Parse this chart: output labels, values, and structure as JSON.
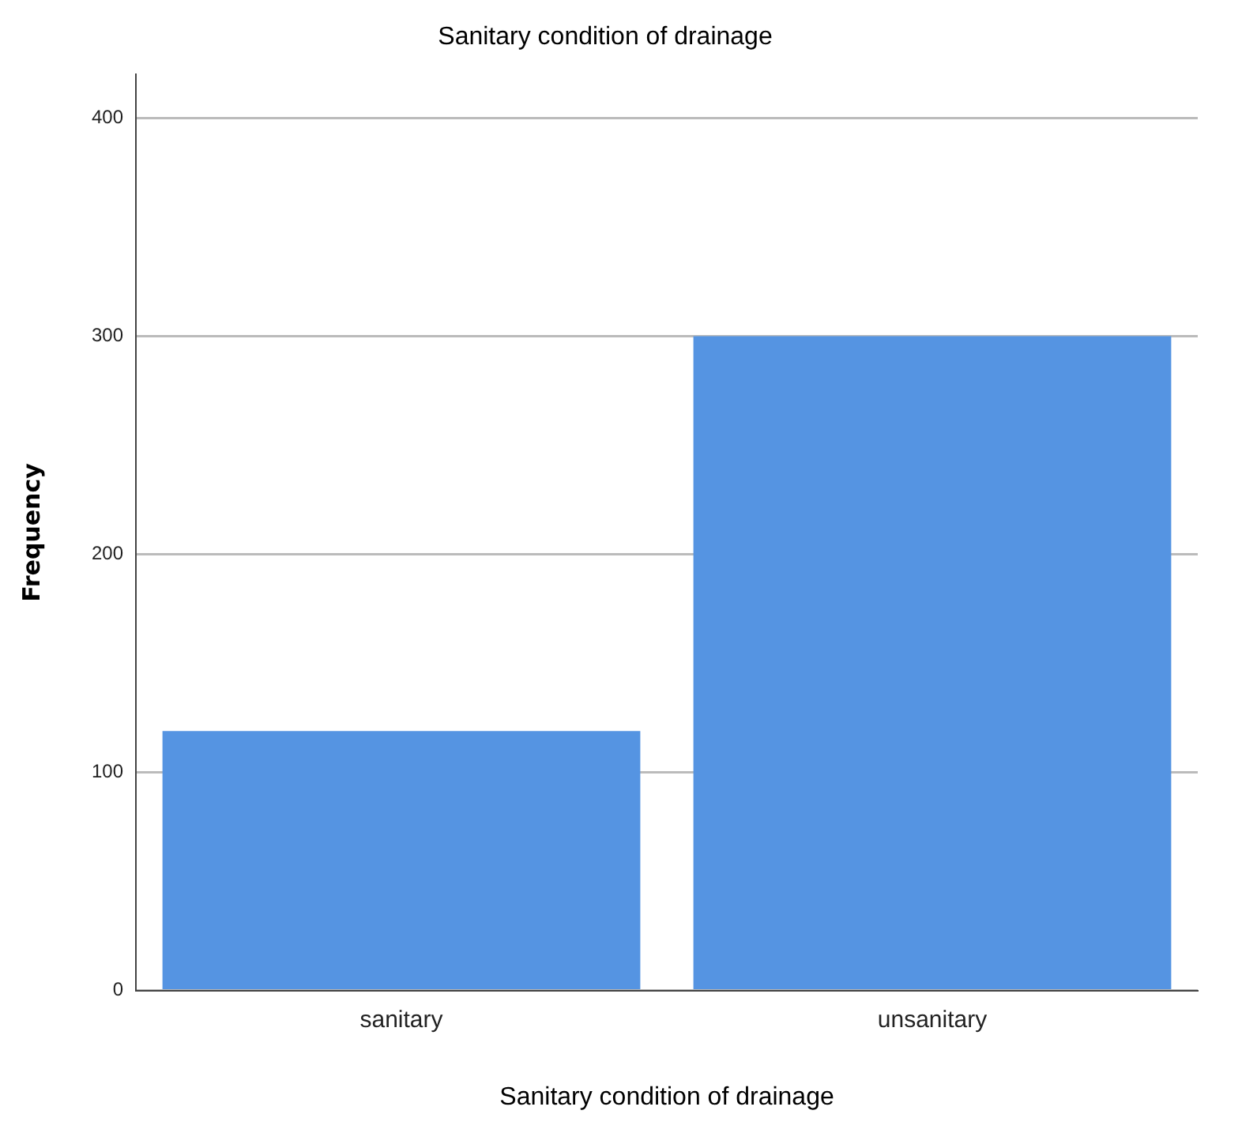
{
  "chart_data": {
    "type": "bar",
    "title": "Sanitary condition of drainage",
    "xlabel": "Sanitary condition of drainage",
    "ylabel": "Frequency",
    "categories": [
      "sanitary",
      "unsanitary"
    ],
    "values": [
      119,
      300
    ],
    "color": "#5594e2",
    "ylim": [
      0,
      420
    ],
    "yticks": [
      0,
      100,
      200,
      300,
      400
    ],
    "grid": "y",
    "legend": false
  }
}
